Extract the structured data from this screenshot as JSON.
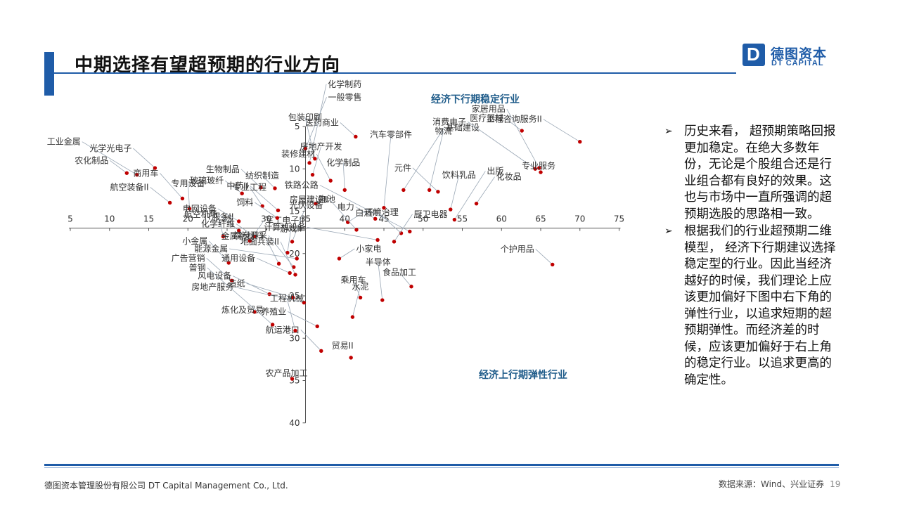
{
  "header": {
    "title": "中期选择有望超预期的行业方向",
    "logo_cn": "德图资本",
    "logo_en": "DT CAPITAL",
    "logo_mark": "D"
  },
  "colors": {
    "accent": "#1f5ca8",
    "point": "#c00000",
    "quadrant_label": "#1f5c8a"
  },
  "chart_data": {
    "type": "scatter",
    "x_ticks": [
      "5",
      "10",
      "15",
      "20",
      "25",
      "30",
      "35",
      "40",
      "45",
      "50",
      "55",
      "60",
      "65",
      "70",
      "75"
    ],
    "y_ticks": [
      "5",
      "10",
      "15",
      "20",
      "25",
      "30",
      "35",
      "40"
    ],
    "xlim": [
      5,
      75
    ],
    "ylim": [
      40,
      5
    ],
    "axis_cross": {
      "x": 35,
      "y": 17
    },
    "quadrant_labels": {
      "top": "经济下行期稳定行业",
      "bottom": "经济上行期弹性行业"
    },
    "points": [
      {
        "label": "农化制品",
        "x": 12.2,
        "y": 10.5
      },
      {
        "label": "航空装备II",
        "x": 17.7,
        "y": 14.0
      },
      {
        "label": "IT服务II",
        "x": 24.5,
        "y": 18.0
      },
      {
        "label": "军工电子II",
        "x": 27.9,
        "y": 18.5
      },
      {
        "label": "专用设备",
        "x": 20.2,
        "y": 14.7
      },
      {
        "label": "工业金属",
        "x": 13.5,
        "y": 10.7
      },
      {
        "label": "光学光电子",
        "x": 15.8,
        "y": 9.9
      },
      {
        "label": "商用车",
        "x": 19.3,
        "y": 13.5
      },
      {
        "label": "电网设备",
        "x": 26.5,
        "y": 16.2
      },
      {
        "label": "玻璃玻纤",
        "x": 26.9,
        "y": 12.9
      },
      {
        "label": "生物制品",
        "x": 29.3,
        "y": 12.2
      },
      {
        "label": "纺织制造",
        "x": 31.1,
        "y": 12.3
      },
      {
        "label": "中药II",
        "x": 31.5,
        "y": 14.9
      },
      {
        "label": "专业工程",
        "x": 29.5,
        "y": 14.4
      },
      {
        "label": "饲料",
        "x": 31.4,
        "y": 15.8
      },
      {
        "label": "化学制药",
        "x": 35.5,
        "y": 9.3
      },
      {
        "label": "医药商业",
        "x": 41.4,
        "y": 6.2
      },
      {
        "label": "一般零售",
        "x": 35.0,
        "y": 7.6
      },
      {
        "label": "包装印刷",
        "x": 36.2,
        "y": 8.8
      },
      {
        "label": "房地产开发",
        "x": 35.9,
        "y": 10.7
      },
      {
        "label": "化学制品",
        "x": 40.0,
        "y": 12.5
      },
      {
        "label": "装修建材",
        "x": 38.2,
        "y": 11.4
      },
      {
        "label": "电池",
        "x": 36.3,
        "y": 14.1
      },
      {
        "label": "环境治理",
        "x": 40.4,
        "y": 16.3
      },
      {
        "label": "电力",
        "x": 43.9,
        "y": 15.9
      },
      {
        "label": "汽车零部件",
        "x": 45.0,
        "y": 14.6
      },
      {
        "label": "基础建设",
        "x": 47.5,
        "y": 12.5
      },
      {
        "label": "物流",
        "x": 50.8,
        "y": 12.5
      },
      {
        "label": "元件",
        "x": 51.9,
        "y": 12.7
      },
      {
        "label": "饮料乳品",
        "x": 53.5,
        "y": 14.8
      },
      {
        "label": "出版",
        "x": 54.0,
        "y": 16.0
      },
      {
        "label": "化妆品",
        "x": 56.8,
        "y": 14.1
      },
      {
        "label": "医疗器械",
        "x": 62.6,
        "y": 5.5
      },
      {
        "label": "工程咨询服务II",
        "x": 70.0,
        "y": 6.8
      },
      {
        "label": "消费电子",
        "x": 64.3,
        "y": 10.0
      },
      {
        "label": "家居用品",
        "x": 64.8,
        "y": 9.9
      },
      {
        "label": "专业服务",
        "x": 65.0,
        "y": 10.4
      },
      {
        "label": "房屋建设II",
        "x": 41.5,
        "y": 17.2
      },
      {
        "label": "计算机设备",
        "x": 44.2,
        "y": 18.4
      },
      {
        "label": "白酒II",
        "x": 47.2,
        "y": 17.6
      },
      {
        "label": "厨卫电器",
        "x": 46.3,
        "y": 18.6
      },
      {
        "label": "小家电",
        "x": 39.3,
        "y": 20.6
      },
      {
        "label": "铁路公路",
        "x": 48.3,
        "y": 17.4
      },
      {
        "label": "个护用品",
        "x": 66.5,
        "y": 21.3
      },
      {
        "label": "食品加工",
        "x": 48.5,
        "y": 23.9
      },
      {
        "label": "乘用车",
        "x": 42.0,
        "y": 25.2
      },
      {
        "label": "养殖业",
        "x": 36.5,
        "y": 28.6
      },
      {
        "label": "半导体",
        "x": 44.8,
        "y": 25.5
      },
      {
        "label": "航运港口",
        "x": 37.0,
        "y": 31.5
      },
      {
        "label": "水泥",
        "x": 41.0,
        "y": 27.5
      },
      {
        "label": "贸易II",
        "x": 40.8,
        "y": 32.3
      },
      {
        "label": "航空机场",
        "x": 26.5,
        "y": 17.3
      },
      {
        "label": "化学纤维",
        "x": 28.5,
        "y": 18.0
      },
      {
        "label": "光伏设备",
        "x": 33.3,
        "y": 18.6
      },
      {
        "label": "游戏II",
        "x": 32.7,
        "y": 19.9
      },
      {
        "label": "小金属",
        "x": 25.2,
        "y": 21.1
      },
      {
        "label": "通用设备",
        "x": 33.0,
        "y": 22.3
      },
      {
        "label": "金属新材料",
        "x": 31.6,
        "y": 21.2
      },
      {
        "label": "煤炭开采",
        "x": 33.5,
        "y": 21.6
      },
      {
        "label": "广告营销",
        "x": 25.6,
        "y": 23.2
      },
      {
        "label": "地面兵装II",
        "x": 33.7,
        "y": 22.5
      },
      {
        "label": "能源金属",
        "x": 33.9,
        "y": 20.6
      },
      {
        "label": "风电设备",
        "x": 30.4,
        "y": 24.8
      },
      {
        "label": "造纸",
        "x": 33.4,
        "y": 25.2
      },
      {
        "label": "房地产服务",
        "x": 34.8,
        "y": 25.8
      },
      {
        "label": "炼化及贸易",
        "x": 28.5,
        "y": 26.9
      },
      {
        "label": "普钢",
        "x": 30.8,
        "y": 28.4
      },
      {
        "label": "工程机械",
        "x": 33.7,
        "y": 29.1
      },
      {
        "label": "农产品加工",
        "x": 33.3,
        "y": 34.8
      }
    ]
  },
  "bullets": [
    "历史来看， 超预期策略回报更加稳定。在绝大多数年份，无论是个股组合还是行业组合都有良好的效果。这也与市场中一直所强调的超预期选股的思路相一致。",
    "根据我们的行业超预期二维模型， 经济下行期建议选择稳定型的行业。因此当经济越好的时候，我们理论上应该更加偏好下图中右下角的弹性行业，以追求短期的超预期弹性。而经济差的时候，应该更加偏好于右上角的稳定行业。以追求更高的确定性。"
  ],
  "footer": {
    "company": "德图资本管理股份有限公司  DT Capital Management  Co., Ltd.",
    "source": "数据来源：Wind、兴业证券",
    "page": "19"
  }
}
